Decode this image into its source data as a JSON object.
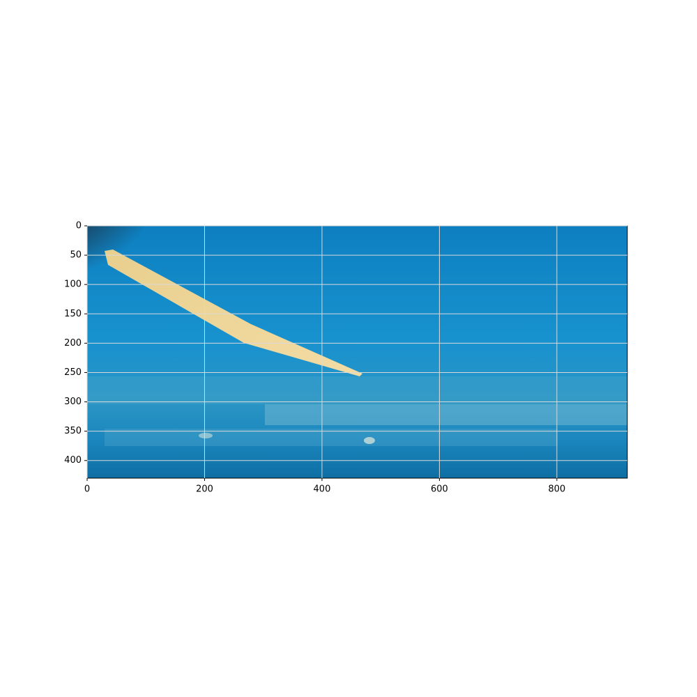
{
  "chart_data": {
    "type": "image",
    "xlim": [
      0,
      920
    ],
    "ylim": [
      430,
      0
    ],
    "xticks": [
      0,
      200,
      400,
      600,
      800
    ],
    "yticks": [
      0,
      50,
      100,
      150,
      200,
      250,
      300,
      350,
      400
    ],
    "grid": true
  }
}
